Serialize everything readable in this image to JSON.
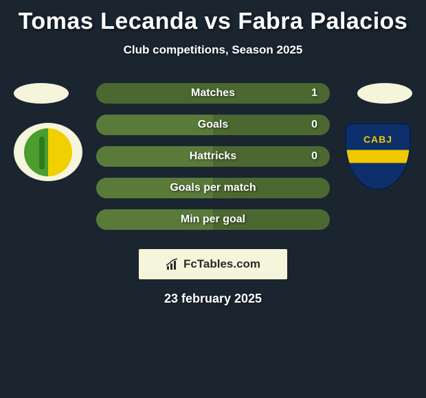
{
  "title": "Tomas Lecanda vs Fabra Palacios",
  "subtitle": "Club competitions, Season 2025",
  "date": "23 february 2025",
  "logo_text": "FcTables.com",
  "colors": {
    "background": "#1a2530",
    "row_bg": "#2a3842",
    "bar_left": "#5a7a3a",
    "bar_right": "#4a6830",
    "flag_bg": "#f5f5dc",
    "text": "#ffffff"
  },
  "flags": {
    "left_bg": "#f5f5dc",
    "right_bg": "#f5f5dc"
  },
  "badges": {
    "left": {
      "primary": "#4a9d2f",
      "secondary": "#f0d000"
    },
    "right": {
      "label": "CABJ",
      "primary": "#0d2f6b",
      "stripe": "#f0c800"
    }
  },
  "stats": [
    {
      "label": "Matches",
      "left_val": "",
      "right_val": "1",
      "left_pct": 0,
      "right_pct": 100
    },
    {
      "label": "Goals",
      "left_val": "",
      "right_val": "0",
      "left_pct": 50,
      "right_pct": 50
    },
    {
      "label": "Hattricks",
      "left_val": "",
      "right_val": "0",
      "left_pct": 50,
      "right_pct": 50
    },
    {
      "label": "Goals per match",
      "left_val": "",
      "right_val": "",
      "left_pct": 50,
      "right_pct": 50
    },
    {
      "label": "Min per goal",
      "left_val": "",
      "right_val": "",
      "left_pct": 50,
      "right_pct": 50
    }
  ],
  "typography": {
    "title_fontsize": 34,
    "subtitle_fontsize": 17,
    "stat_label_fontsize": 16,
    "date_fontsize": 18
  }
}
